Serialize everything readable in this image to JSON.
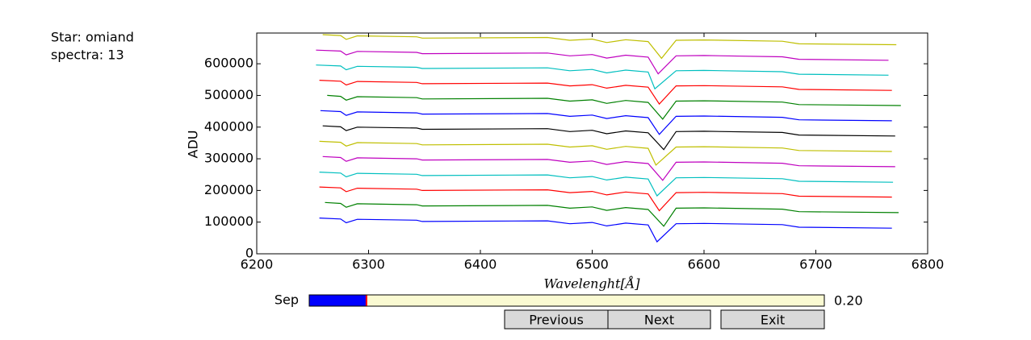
{
  "info": {
    "star": "Star: omiand",
    "spectra": "spectra: 13"
  },
  "chart_data": {
    "type": "line",
    "xlabel": "Wavelenght[Å]",
    "ylabel": "ADU",
    "xlim": [
      6200,
      6800
    ],
    "xticks": [
      6200,
      6300,
      6400,
      6500,
      6600,
      6700,
      6800
    ],
    "ylim": [
      0,
      697000
    ],
    "yticks": [
      0,
      100000,
      200000,
      300000,
      400000,
      500000,
      600000
    ],
    "series": [
      {
        "color": "#0000ff",
        "x": [
          6256,
          6275,
          6280,
          6290,
          6343,
          6348,
          6460,
          6480,
          6500,
          6513,
          6530,
          6550,
          6558,
          6575,
          6600,
          6670,
          6685,
          6768
        ],
        "values": [
          113000,
          110000,
          98000,
          109000,
          106000,
          102000,
          104000,
          95000,
          99000,
          88000,
          97000,
          91000,
          38000,
          95000,
          96000,
          92000,
          84000,
          81000
        ]
      },
      {
        "color": "#008000",
        "x": [
          6261,
          6275,
          6280,
          6290,
          6343,
          6348,
          6460,
          6480,
          6500,
          6513,
          6530,
          6550,
          6564,
          6575,
          6600,
          6670,
          6685,
          6774
        ],
        "values": [
          162000,
          159000,
          147000,
          158000,
          155000,
          151000,
          153000,
          144000,
          148000,
          137000,
          146000,
          140000,
          87000,
          144000,
          145000,
          141000,
          133000,
          130000
        ]
      },
      {
        "color": "#ff0000",
        "x": [
          6256,
          6275,
          6280,
          6290,
          6343,
          6348,
          6460,
          6480,
          6500,
          6513,
          6530,
          6550,
          6560,
          6575,
          6600,
          6670,
          6685,
          6768
        ],
        "values": [
          211000,
          208000,
          196000,
          207000,
          204000,
          200000,
          202000,
          193000,
          197000,
          186000,
          195000,
          189000,
          136000,
          193000,
          194000,
          190000,
          182000,
          179000
        ]
      },
      {
        "color": "#00bfbf",
        "x": [
          6256,
          6275,
          6280,
          6290,
          6343,
          6348,
          6460,
          6480,
          6500,
          6513,
          6530,
          6550,
          6558,
          6575,
          6600,
          6670,
          6685,
          6769
        ],
        "values": [
          258000,
          255000,
          243000,
          254000,
          251000,
          247000,
          249000,
          240000,
          244000,
          233000,
          242000,
          236000,
          183000,
          240000,
          241000,
          237000,
          229000,
          226000
        ]
      },
      {
        "color": "#bf00bf",
        "x": [
          6259,
          6275,
          6280,
          6290,
          6343,
          6348,
          6460,
          6480,
          6500,
          6513,
          6530,
          6550,
          6563,
          6575,
          6600,
          6670,
          6685,
          6771
        ],
        "values": [
          307000,
          304000,
          292000,
          303000,
          300000,
          296000,
          298000,
          289000,
          293000,
          282000,
          291000,
          285000,
          232000,
          289000,
          290000,
          286000,
          278000,
          275000
        ]
      },
      {
        "color": "#bfbf00",
        "x": [
          6256,
          6275,
          6280,
          6290,
          6343,
          6348,
          6460,
          6480,
          6500,
          6513,
          6530,
          6550,
          6557,
          6575,
          6600,
          6670,
          6685,
          6768
        ],
        "values": [
          355000,
          352000,
          340000,
          351000,
          348000,
          344000,
          346000,
          337000,
          341000,
          330000,
          339000,
          333000,
          280000,
          337000,
          338000,
          334000,
          326000,
          323000
        ]
      },
      {
        "color": "#000000",
        "x": [
          6259,
          6275,
          6280,
          6290,
          6343,
          6348,
          6460,
          6480,
          6500,
          6513,
          6530,
          6550,
          6564,
          6575,
          6600,
          6670,
          6685,
          6771
        ],
        "values": [
          404000,
          401000,
          389000,
          400000,
          397000,
          393000,
          395000,
          386000,
          390000,
          379000,
          388000,
          382000,
          329000,
          386000,
          387000,
          383000,
          375000,
          372000
        ]
      },
      {
        "color": "#0000ff",
        "x": [
          6257,
          6275,
          6280,
          6290,
          6343,
          6348,
          6460,
          6480,
          6500,
          6513,
          6530,
          6550,
          6560,
          6575,
          6600,
          6670,
          6685,
          6768
        ],
        "values": [
          452000,
          449000,
          437000,
          448000,
          445000,
          441000,
          443000,
          434000,
          438000,
          427000,
          436000,
          430000,
          377000,
          434000,
          435000,
          431000,
          423000,
          420000
        ]
      },
      {
        "color": "#008000",
        "x": [
          6263,
          6275,
          6280,
          6290,
          6343,
          6348,
          6460,
          6480,
          6500,
          6513,
          6530,
          6550,
          6563,
          6575,
          6600,
          6670,
          6685,
          6776
        ],
        "values": [
          500000,
          497000,
          485000,
          496000,
          493000,
          489000,
          491000,
          482000,
          486000,
          475000,
          484000,
          478000,
          425000,
          482000,
          483000,
          479000,
          471000,
          468000
        ]
      },
      {
        "color": "#ff0000",
        "x": [
          6256,
          6275,
          6280,
          6290,
          6343,
          6348,
          6460,
          6480,
          6500,
          6513,
          6530,
          6550,
          6560,
          6575,
          6600,
          6670,
          6685,
          6768
        ],
        "values": [
          548000,
          545000,
          533000,
          544000,
          541000,
          537000,
          539000,
          530000,
          534000,
          523000,
          532000,
          526000,
          473000,
          530000,
          531000,
          527000,
          519000,
          516000
        ]
      },
      {
        "color": "#00bfbf",
        "x": [
          6253,
          6275,
          6280,
          6290,
          6343,
          6348,
          6460,
          6480,
          6500,
          6513,
          6530,
          6550,
          6556,
          6575,
          6600,
          6670,
          6685,
          6765
        ],
        "values": [
          596000,
          593000,
          581000,
          592000,
          589000,
          585000,
          587000,
          578000,
          582000,
          571000,
          580000,
          574000,
          521000,
          578000,
          579000,
          575000,
          567000,
          564000
        ]
      },
      {
        "color": "#bf00bf",
        "x": [
          6253,
          6275,
          6280,
          6290,
          6343,
          6348,
          6460,
          6480,
          6500,
          6513,
          6530,
          6550,
          6559,
          6575,
          6600,
          6670,
          6685,
          6765
        ],
        "values": [
          643000,
          640000,
          628000,
          639000,
          636000,
          632000,
          634000,
          625000,
          629000,
          618000,
          627000,
          621000,
          568000,
          625000,
          626000,
          622000,
          614000,
          611000
        ]
      },
      {
        "color": "#bfbf00",
        "x": [
          6259,
          6275,
          6280,
          6290,
          6343,
          6348,
          6460,
          6480,
          6500,
          6513,
          6530,
          6550,
          6562,
          6575,
          6600,
          6670,
          6685,
          6772
        ],
        "values": [
          692000,
          689000,
          677000,
          688000,
          685000,
          681000,
          683000,
          674000,
          678000,
          667000,
          676000,
          670000,
          617000,
          674000,
          675000,
          671000,
          663000,
          660000
        ]
      }
    ]
  },
  "slider": {
    "label": "Sep",
    "value": 0.2,
    "value_label": "0.20",
    "range": [
      0,
      1.8
    ],
    "color": "#0000ff"
  },
  "buttons": [
    "Previous",
    "Next",
    "Exit"
  ]
}
